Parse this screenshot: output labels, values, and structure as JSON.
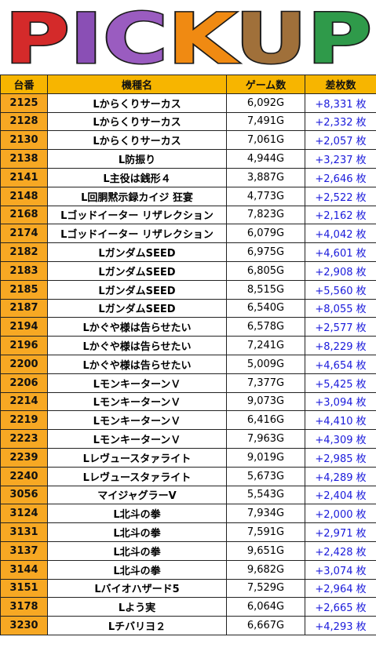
{
  "header": {
    "title": "PICKUP"
  },
  "table": {
    "columns": [
      "台番",
      "機種名",
      "ゲーム数",
      "差枚数"
    ],
    "rows": [
      [
        "2125",
        "Lからくりサーカス",
        "6,092G",
        "+8,331 枚"
      ],
      [
        "2128",
        "Lからくりサーカス",
        "7,491G",
        "+2,332 枚"
      ],
      [
        "2130",
        "Lからくりサーカス",
        "7,061G",
        "+2,057 枚"
      ],
      [
        "2138",
        "L防振り",
        "4,944G",
        "+3,237 枚"
      ],
      [
        "2141",
        "L主役は銭形４",
        "3,887G",
        "+2,646 枚"
      ],
      [
        "2148",
        "L回胴黙示録カイジ 狂宴",
        "4,773G",
        "+2,522 枚"
      ],
      [
        "2168",
        "Lゴッドイーター リザレクション",
        "7,823G",
        "+2,162 枚"
      ],
      [
        "2174",
        "Lゴッドイーター リザレクション",
        "6,079G",
        "+4,042 枚"
      ],
      [
        "2182",
        "LガンダムSEED",
        "6,975G",
        "+4,601 枚"
      ],
      [
        "2183",
        "LガンダムSEED",
        "6,805G",
        "+2,908 枚"
      ],
      [
        "2185",
        "LガンダムSEED",
        "8,515G",
        "+5,560 枚"
      ],
      [
        "2187",
        "LガンダムSEED",
        "6,540G",
        "+8,055 枚"
      ],
      [
        "2194",
        "Lかぐや様は告らせたい",
        "6,578G",
        "+2,577 枚"
      ],
      [
        "2196",
        "Lかぐや様は告らせたい",
        "7,241G",
        "+8,229 枚"
      ],
      [
        "2200",
        "Lかぐや様は告らせたい",
        "5,009G",
        "+4,654 枚"
      ],
      [
        "2206",
        "LモンキーターンＶ",
        "7,377G",
        "+5,425 枚"
      ],
      [
        "2214",
        "LモンキーターンＶ",
        "9,073G",
        "+3,094 枚"
      ],
      [
        "2219",
        "LモンキーターンＶ",
        "6,416G",
        "+4,410 枚"
      ],
      [
        "2223",
        "LモンキーターンＶ",
        "7,963G",
        "+4,309 枚"
      ],
      [
        "2239",
        "Lレヴュースタァライト",
        "9,019G",
        "+2,985 枚"
      ],
      [
        "2240",
        "Lレヴュースタァライト",
        "5,673G",
        "+4,289 枚"
      ],
      [
        "3056",
        "マイジャグラーV",
        "5,543G",
        "+2,404 枚"
      ],
      [
        "3124",
        "L北斗の拳",
        "7,934G",
        "+2,000 枚"
      ],
      [
        "3131",
        "L北斗の拳",
        "7,591G",
        "+2,971 枚"
      ],
      [
        "3137",
        "L北斗の拳",
        "9,651G",
        "+2,428 枚"
      ],
      [
        "3144",
        "L北斗の拳",
        "9,682G",
        "+3,074 枚"
      ],
      [
        "3151",
        "Lバイオハザード5",
        "7,529G",
        "+2,964 枚"
      ],
      [
        "3178",
        "Lよう実",
        "6,064G",
        "+2,665 枚"
      ],
      [
        "3230",
        "Lチバリヨ２",
        "6,667G",
        "+4,293 枚"
      ]
    ]
  }
}
